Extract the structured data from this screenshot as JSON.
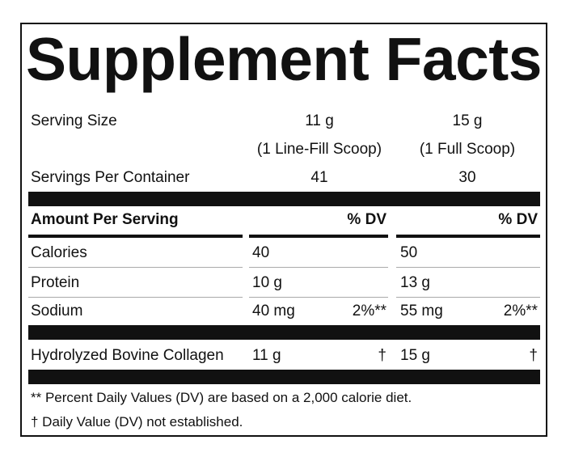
{
  "title": "Supplement Facts",
  "serving_size": {
    "label": "Serving Size",
    "columns": [
      {
        "amount": "11 g",
        "note": "(1 Line-Fill Scoop)"
      },
      {
        "amount": "15 g",
        "note": "(1 Full Scoop)"
      }
    ]
  },
  "servings_per_container": {
    "label": "Servings Per Container",
    "values": [
      41,
      30
    ]
  },
  "table": {
    "header": {
      "label": "Amount Per Serving",
      "dv": [
        "% DV",
        "% DV"
      ]
    },
    "rows": [
      {
        "name": "Calories",
        "cells": [
          {
            "amount": "40"
          },
          {
            "amount": "50"
          }
        ]
      },
      {
        "name": "Protein",
        "cells": [
          {
            "amount": "10 g"
          },
          {
            "amount": "13 g"
          }
        ]
      },
      {
        "name": "Sodium",
        "cells": [
          {
            "amount": "40 mg",
            "dv": "2%**"
          },
          {
            "amount": "55 mg",
            "dv": "2%**"
          }
        ]
      },
      {
        "name": "Hydrolyzed Bovine Collagen",
        "cells": [
          {
            "amount": "11 g",
            "dv": "†"
          },
          {
            "amount": "15 g",
            "dv": "†"
          }
        ]
      }
    ]
  },
  "footnotes": [
    "** Percent Daily Values (DV) are based on a 2,000 calorie diet.",
    "† Daily Value (DV) not established."
  ]
}
